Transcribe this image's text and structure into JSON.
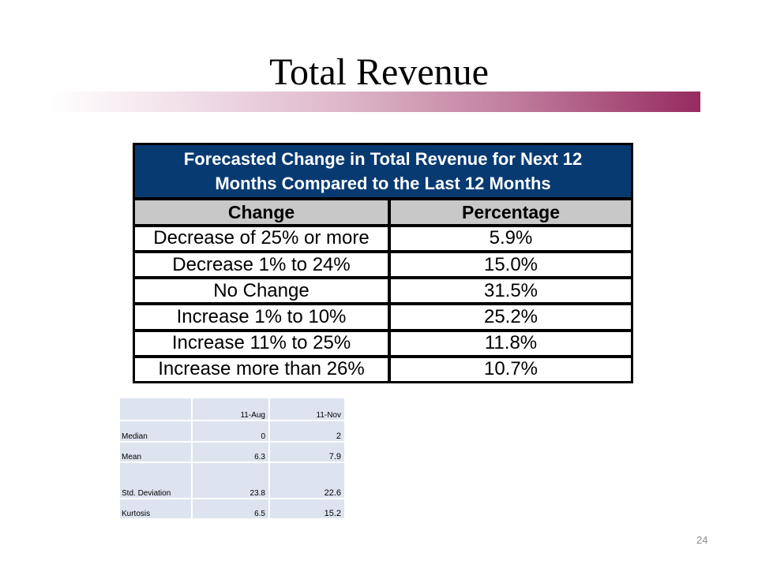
{
  "title": "Total Revenue",
  "forecast_table": {
    "heading_line1": "Forecasted Change in Total Revenue for Next 12",
    "heading_line2": "Months Compared to the Last 12 Months",
    "col_change": "Change",
    "col_percentage": "Percentage",
    "rows": [
      {
        "change": "Decrease of 25% or more",
        "percentage": "5.9%"
      },
      {
        "change": "Decrease 1% to 24%",
        "percentage": "15.0%"
      },
      {
        "change": "No Change",
        "percentage": "31.5%"
      },
      {
        "change": "Increase 1% to 10%",
        "percentage": "25.2%"
      },
      {
        "change": "Increase 11% to 25%",
        "percentage": "11.8%"
      },
      {
        "change": "Increase more than 26%",
        "percentage": "10.7%"
      }
    ]
  },
  "stats_table": {
    "col_aug": "11-Aug",
    "col_nov": "11-Nov",
    "rows": [
      {
        "label": "Median",
        "aug": "0",
        "nov": "2"
      },
      {
        "label": "Mean",
        "aug": "6.3",
        "nov": "7.9"
      },
      {
        "label": "Std. Deviation",
        "aug": "23.8",
        "nov": "22.6"
      },
      {
        "label": "Kurtosis",
        "aug": "6.5",
        "nov": "15.2"
      }
    ]
  },
  "page_number": "24",
  "colors": {
    "header_blue": "#083a72",
    "column_header_gray": "#c8c8c8",
    "accent_bar_end": "#962b5f",
    "stats_cell": "#dde4ef"
  }
}
